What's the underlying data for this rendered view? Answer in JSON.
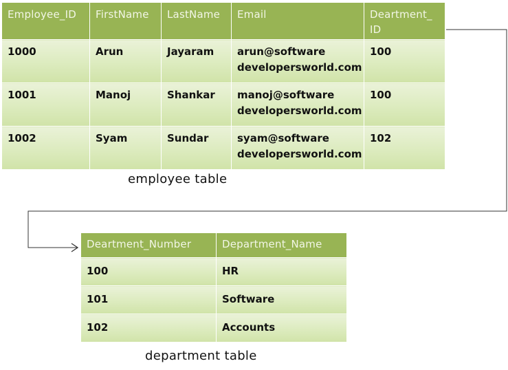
{
  "employee_table": {
    "columns": [
      "Employee_ID",
      "FirstName",
      "LastName",
      "Email",
      "Deartment_ ID"
    ],
    "rows": [
      {
        "employee_id": "1000",
        "first_name": "Arun",
        "last_name": "Jayaram",
        "email_line1": "arun@software",
        "email_line2": "developersworld.com",
        "dept_id": "100"
      },
      {
        "employee_id": "1001",
        "first_name": "Manoj",
        "last_name": "Shankar",
        "email_line1": "manoj@software",
        "email_line2": "developersworld.com",
        "dept_id": "100"
      },
      {
        "employee_id": "1002",
        "first_name": "Syam",
        "last_name": "Sundar",
        "email_line1": "syam@software",
        "email_line2": "developersworld.com",
        "dept_id": "102"
      }
    ],
    "caption": "employee table"
  },
  "department_table": {
    "columns": [
      "Deartment_Number",
      "Department_Name"
    ],
    "rows": [
      {
        "number": "100",
        "name": "HR"
      },
      {
        "number": "101",
        "name": "Software"
      },
      {
        "number": "102",
        "name": "Accounts"
      }
    ],
    "caption": "department table"
  },
  "colors": {
    "header_bg": "#98b454",
    "header_text": "#f2f6e6",
    "cell_bg_top": "#eaf2d8",
    "cell_bg_bottom": "#d0e3a8",
    "connector": "#333333"
  }
}
